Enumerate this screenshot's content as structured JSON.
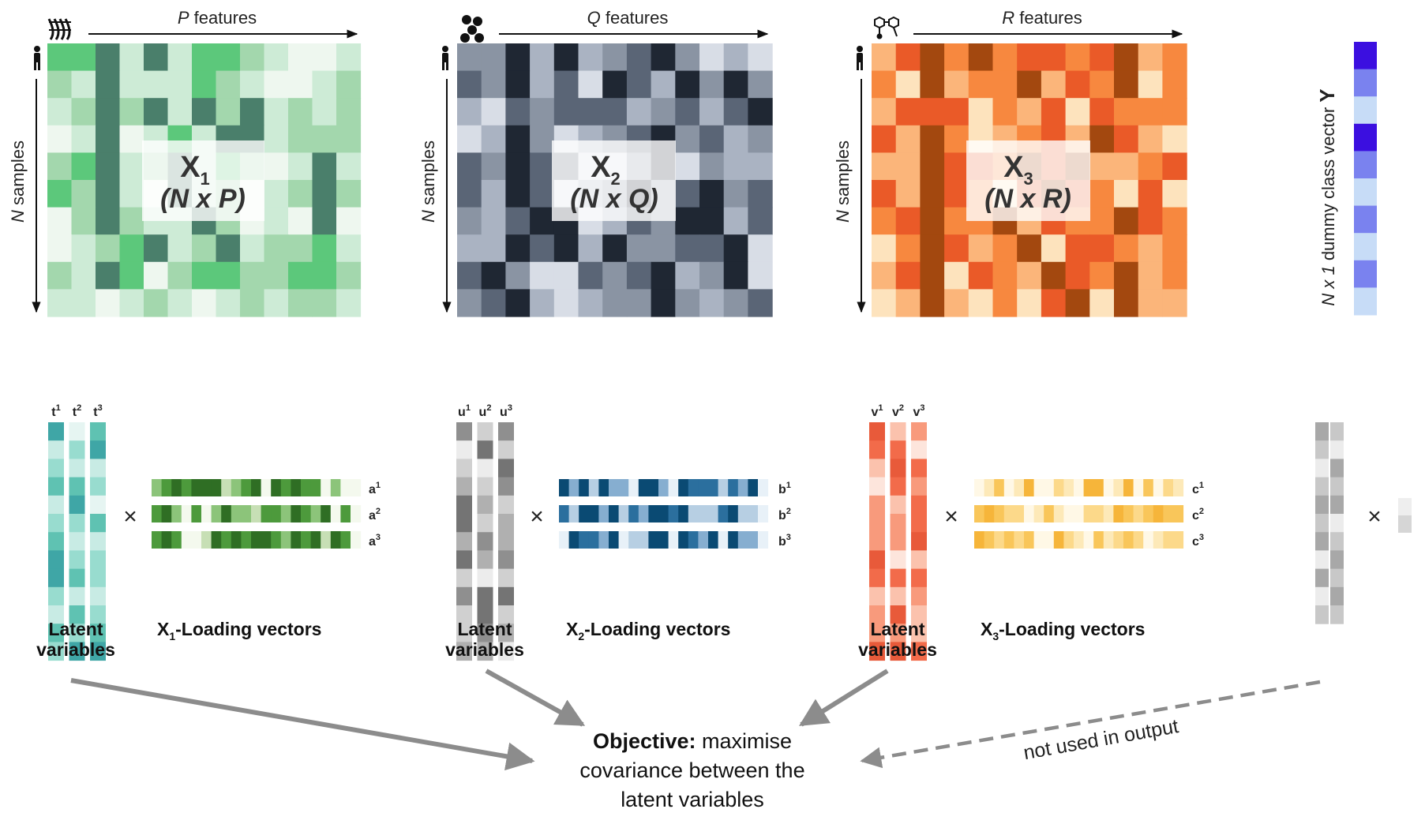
{
  "blocks": [
    {
      "id": "x1",
      "matrix_name": "X",
      "matrix_sub": "1",
      "matrix_dim": "(N x P)",
      "feature_letter": "P",
      "feature_word": "features",
      "samples_letter": "N",
      "samples_word": "samples",
      "palette": [
        "#eef7ef",
        "#cdebd6",
        "#a3d7ad",
        "#5cc87b",
        "#4a7f6b"
      ],
      "grid": [
        "3341413321001",
        "2141113210012",
        "1242414241212",
        "0140131441222",
        "2341241320141",
        "3241041201242",
        "0242114201040",
        "0123412412231",
        "2143023322332",
        "1101210121221"
      ],
      "lv_labels": [
        "t",
        "t",
        "t"
      ],
      "lv_sups": [
        "1",
        "2",
        "3"
      ],
      "lv_palette": [
        "#e6f5f2",
        "#c8ebe4",
        "#98dccf",
        "#5fc2b2",
        "#3fa6a6"
      ],
      "lv_cols": [
        "4123123442132",
        "0213421231324",
        "3412031221234"
      ],
      "load_labels": [
        "a",
        "a",
        "a"
      ],
      "load_sups": [
        "1",
        "2",
        "3"
      ],
      "load_palette": [
        "#f4f9ee",
        "#c7dfb5",
        "#8cc47a",
        "#4d9a3c",
        "#2f6e24"
      ],
      "load_rows": [
        "234344412340434330200",
        "342030242213324324030",
        "343001434344324341430"
      ],
      "caption_lv": [
        "Latent",
        "variables"
      ],
      "caption_load_pre": "X",
      "caption_load_sub": "1",
      "caption_load_post": "-Loading vectors"
    },
    {
      "id": "x2",
      "matrix_name": "X",
      "matrix_sub": "2",
      "matrix_dim": "(N x Q)",
      "feature_letter": "Q",
      "feature_word": "features",
      "samples_letter": "N",
      "samples_word": "samples",
      "palette": [
        "#d8dde6",
        "#aab3c2",
        "#8a94a3",
        "#5a6576",
        "#1f2733"
      ],
      "grid": [
        "2241412342010",
        "3241304314242",
        "1032333123134",
        "0142012342312",
        "3243300240211",
        "3143012423423",
        "2134401324413",
        "1143414223340",
        "3420032341240",
        "2341012242123"
      ],
      "lv_labels": [
        "u",
        "u",
        "u"
      ],
      "lv_sups": [
        "1",
        "2",
        "3"
      ],
      "lv_palette": [
        "#ececec",
        "#d0d0d0",
        "#b0b0b0",
        "#8f8f8f",
        "#747474"
      ],
      "lv_cols": [
        "3012442413112",
        "1401213204432",
        "3143122314120"
      ],
      "load_labels": [
        "b",
        "b",
        "b"
      ],
      "load_sups": [
        "1",
        "2",
        "3"
      ],
      "load_palette": [
        "#e8f1f8",
        "#b7cfe3",
        "#86aed0",
        "#2b6f9e",
        "#0a4a73"
      ],
      "load_rows": [
        "424142204420433313240",
        "314424132443411134110",
        "043324011440432404220"
      ],
      "caption_lv": [
        "Latent",
        "variables"
      ],
      "caption_load_pre": "X",
      "caption_load_sub": "2",
      "caption_load_post": "-Loading vectors"
    },
    {
      "id": "x3",
      "matrix_name": "X",
      "matrix_sub": "3",
      "matrix_dim": "(N x R)",
      "feature_letter": "R",
      "feature_word": "features",
      "samples_letter": "N",
      "samples_word": "samples",
      "palette": [
        "#fde3bd",
        "#fbb57a",
        "#f7883f",
        "#ea5a28",
        "#a3480f"
      ],
      "grid": [
        "1342423323412",
        "2041224132402",
        "1333021303222",
        "3142012314310",
        "1143324341123",
        "3143203432030",
        "2342241322432",
        "0243124033212",
        "1340321432412",
        "0141020340411"
      ],
      "lv_labels": [
        "v",
        "v",
        "v"
      ],
      "lv_sups": [
        "1",
        "2",
        "3"
      ],
      "lv_palette": [
        "#fde5dc",
        "#fbc2ad",
        "#f89a7c",
        "#f26b4a",
        "#e85a3a"
      ],
      "lv_cols": [
        "4310222431224",
        "1343122031424",
        "2032334132113"
      ],
      "load_labels": [
        "c",
        "c",
        "c"
      ],
      "load_sups": [
        "1",
        "2",
        "3"
      ],
      "load_palette": [
        "#fff8e6",
        "#fde9b8",
        "#fcd98a",
        "#f9c65a",
        "#f6b53a"
      ],
      "load_rows": [
        "013014002104401403021",
        "343220131002214323433",
        "432323004210312320122"
      ],
      "caption_lv": [
        "Latent",
        "variables"
      ],
      "caption_load_pre": "X",
      "caption_load_sub": "3",
      "caption_load_post": "-Loading vectors"
    }
  ],
  "y_vector": {
    "label_pre": "N x 1",
    "label_mid": " dummy class vector ",
    "label_bold": "Y",
    "palette": [
      "#3b0fe0",
      "#7a82ef",
      "#c7dcf7"
    ],
    "cells": "0120121212"
  },
  "y_block": {
    "lv_palette": [
      "#ececec",
      "#c8c8c8",
      "#a8a8a8"
    ],
    "lv_cols": [
      "21012120201",
      "10212012121"
    ],
    "load_palette": [
      "#eeeeee",
      "#d6d6d6"
    ],
    "load_cells": "01"
  },
  "objective": {
    "bold": "Objective:",
    "line1_rest": " maximise",
    "line2": "covariance between the",
    "line3": "latent variables"
  },
  "note": "not used in output",
  "times_symbol": "×",
  "colors": {
    "arrow": "#8c8c8c",
    "axis": "#111111",
    "title_box": "#ffffff"
  }
}
